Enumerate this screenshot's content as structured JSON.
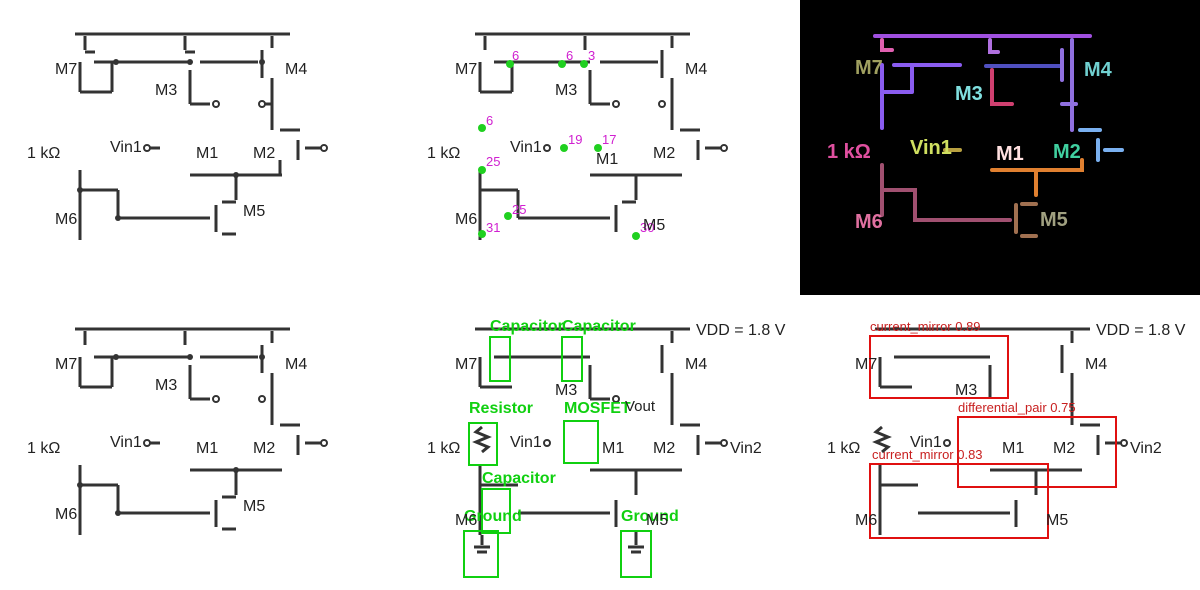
{
  "labels": {
    "m7": "M7",
    "m3": "M3",
    "m4": "M4",
    "m1": "M1",
    "m2": "M2",
    "m6": "M6",
    "m5": "M5",
    "r": "1 kΩ",
    "vin1": "Vin1",
    "vin2": "Vin2",
    "vout": "Vout",
    "vdd": "VDD = 1.8 V"
  },
  "node_numbers": [
    "6",
    "6",
    "3",
    "6",
    "19",
    "17",
    "25",
    "25",
    "31",
    "30"
  ],
  "detections": [
    {
      "label": "Capacitor"
    },
    {
      "label": "Capacitor"
    },
    {
      "label": "Resistor"
    },
    {
      "label": "MOSFET"
    },
    {
      "label": "Capacitor"
    },
    {
      "label": "Ground"
    },
    {
      "label": "Ground"
    }
  ],
  "subcircuits": [
    {
      "label": "current_mirror 0.89"
    },
    {
      "label": "differential_pair 0.75"
    },
    {
      "label": "current_mirror 0.83"
    }
  ],
  "mask_colors": {
    "rail": "#a050e0",
    "m7": "#8a5cf0",
    "m3": "#d04070",
    "m4": "#9070e0",
    "m1": "#e08030",
    "m2": "#7ab0f0",
    "m6": "#a05070",
    "m5": "#a07050",
    "r": "#e050a0",
    "vin": "#b8a040"
  }
}
